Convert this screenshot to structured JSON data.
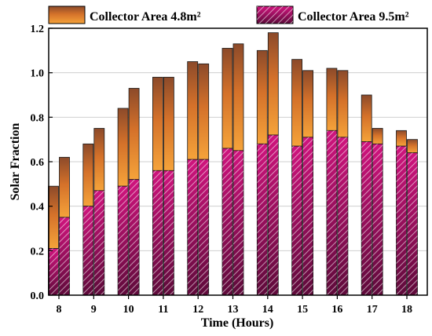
{
  "chart_data": {
    "type": "bar",
    "title": "",
    "xlabel": "Time (Hours)",
    "ylabel": "Solar Fraction",
    "ylim": [
      0,
      1.2
    ],
    "yticks": [
      "0.0",
      "0.2",
      "0.4",
      "0.6",
      "0.8",
      "1.0",
      "1.2"
    ],
    "grid": true,
    "legend_placement": "top",
    "categories": [
      "8",
      "9",
      "10",
      "11",
      "12",
      "13",
      "14",
      "15",
      "16",
      "17",
      "18"
    ],
    "series": [
      {
        "name": "Collector Area 4.8m²",
        "color": "#e07a1f",
        "values": [
          [
            0.49,
            0.62
          ],
          [
            0.68,
            0.75
          ],
          [
            0.84,
            0.93
          ],
          [
            0.98,
            0.98
          ],
          [
            1.05,
            1.04
          ],
          [
            1.11,
            1.13
          ],
          [
            1.1,
            1.18
          ],
          [
            1.06,
            1.01
          ],
          [
            1.02,
            1.01
          ],
          [
            0.9,
            0.75
          ],
          [
            0.74,
            0.7
          ]
        ]
      },
      {
        "name": "Collector Area 9.5m²",
        "color": "#b5106e",
        "values": [
          [
            0.21,
            0.35
          ],
          [
            0.4,
            0.47
          ],
          [
            0.49,
            0.52
          ],
          [
            0.56,
            0.56
          ],
          [
            0.61,
            0.61
          ],
          [
            0.66,
            0.65
          ],
          [
            0.68,
            0.72
          ],
          [
            0.67,
            0.71
          ],
          [
            0.74,
            0.71
          ],
          [
            0.69,
            0.68
          ],
          [
            0.67,
            0.64
          ]
        ]
      }
    ]
  }
}
